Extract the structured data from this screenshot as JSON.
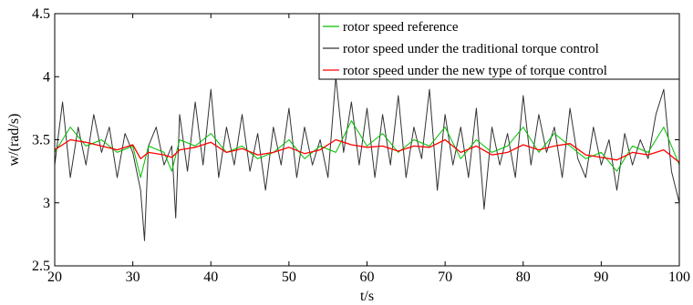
{
  "chart_data": {
    "type": "line",
    "title": "",
    "xlabel": "t/s",
    "ylabel": "w/(rad/s)",
    "xlim": [
      20,
      100
    ],
    "ylim": [
      2.5,
      4.5
    ],
    "xticks": [
      20,
      30,
      40,
      50,
      60,
      70,
      80,
      90,
      100
    ],
    "yticks": [
      2.5,
      3,
      3.5,
      4,
      4.5
    ],
    "grid": false,
    "legend_position": "top-right",
    "series": [
      {
        "name": "rotor speed reference",
        "color": "#00c000",
        "x": [
          20,
          22,
          24,
          26,
          28,
          30,
          31,
          32,
          34,
          35,
          36,
          38,
          40,
          42,
          44,
          46,
          48,
          50,
          52,
          54,
          56,
          58,
          60,
          62,
          64,
          66,
          68,
          70,
          72,
          74,
          76,
          78,
          80,
          82,
          84,
          86,
          88,
          90,
          92,
          94,
          96,
          98,
          100
        ],
        "y": [
          3.4,
          3.6,
          3.45,
          3.5,
          3.4,
          3.45,
          3.2,
          3.45,
          3.4,
          3.25,
          3.5,
          3.45,
          3.55,
          3.4,
          3.45,
          3.35,
          3.4,
          3.5,
          3.35,
          3.45,
          3.4,
          3.65,
          3.45,
          3.55,
          3.4,
          3.5,
          3.45,
          3.6,
          3.35,
          3.5,
          3.4,
          3.45,
          3.6,
          3.4,
          3.55,
          3.45,
          3.35,
          3.4,
          3.25,
          3.45,
          3.4,
          3.6,
          3.3
        ]
      },
      {
        "name": "rotor speed under the traditional torque control",
        "color": "#333333",
        "x": [
          20,
          21,
          22,
          23,
          24,
          25,
          26,
          27,
          28,
          29,
          30,
          31,
          31.5,
          32,
          33,
          34,
          35,
          35.5,
          36,
          37,
          38,
          39,
          40,
          41,
          42,
          43,
          44,
          45,
          46,
          47,
          48,
          49,
          50,
          51,
          52,
          53,
          54,
          55,
          56,
          57,
          58,
          59,
          60,
          61,
          62,
          63,
          64,
          65,
          66,
          67,
          68,
          69,
          70,
          71,
          72,
          73,
          74,
          75,
          76,
          77,
          78,
          79,
          80,
          81,
          82,
          83,
          84,
          85,
          86,
          87,
          88,
          89,
          90,
          91,
          92,
          93,
          94,
          95,
          96,
          97,
          98,
          99,
          100
        ],
        "y": [
          3.3,
          3.8,
          3.2,
          3.6,
          3.3,
          3.7,
          3.4,
          3.6,
          3.2,
          3.55,
          3.4,
          3.1,
          2.7,
          3.45,
          3.6,
          3.3,
          3.45,
          2.88,
          3.7,
          3.25,
          3.8,
          3.3,
          3.9,
          3.2,
          3.6,
          3.3,
          3.7,
          3.25,
          3.55,
          3.1,
          3.6,
          3.3,
          3.75,
          3.2,
          3.6,
          3.3,
          3.5,
          3.2,
          4.0,
          3.4,
          3.8,
          3.3,
          3.75,
          3.2,
          3.7,
          3.3,
          3.85,
          3.2,
          3.6,
          3.35,
          3.9,
          3.1,
          3.7,
          3.3,
          3.6,
          3.2,
          3.75,
          2.95,
          3.6,
          3.3,
          3.55,
          3.2,
          3.85,
          3.3,
          3.7,
          3.4,
          3.6,
          3.2,
          3.75,
          3.35,
          3.2,
          3.6,
          3.3,
          3.5,
          3.1,
          3.55,
          3.3,
          3.5,
          3.35,
          3.7,
          3.9,
          3.25,
          3.0
        ]
      },
      {
        "name": "rotor speed under the new type of torque control",
        "color": "#ff0000",
        "x": [
          20,
          22,
          24,
          26,
          28,
          30,
          31,
          32,
          34,
          35,
          36,
          38,
          40,
          42,
          44,
          46,
          48,
          50,
          52,
          54,
          56,
          58,
          60,
          62,
          64,
          66,
          68,
          70,
          72,
          74,
          76,
          78,
          80,
          82,
          84,
          86,
          88,
          90,
          92,
          94,
          96,
          98,
          100
        ],
        "y": [
          3.42,
          3.5,
          3.48,
          3.45,
          3.42,
          3.46,
          3.35,
          3.4,
          3.38,
          3.36,
          3.42,
          3.44,
          3.48,
          3.4,
          3.43,
          3.38,
          3.4,
          3.44,
          3.39,
          3.42,
          3.5,
          3.46,
          3.44,
          3.45,
          3.41,
          3.45,
          3.44,
          3.5,
          3.4,
          3.45,
          3.38,
          3.4,
          3.46,
          3.42,
          3.45,
          3.47,
          3.38,
          3.36,
          3.34,
          3.4,
          3.38,
          3.42,
          3.32
        ]
      }
    ]
  }
}
